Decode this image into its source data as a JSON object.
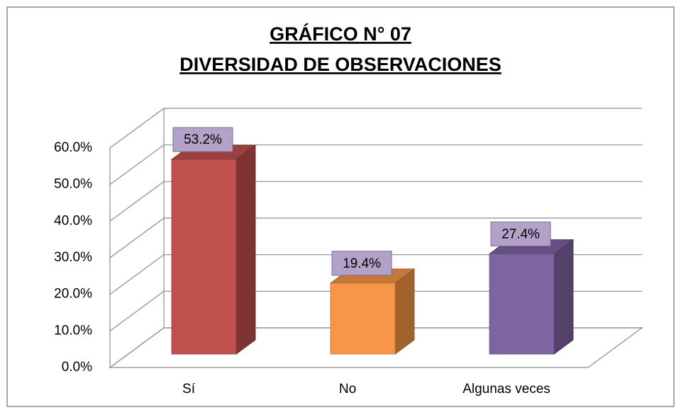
{
  "chart_data": {
    "type": "bar3d",
    "title": "GRÁFICO N° 07",
    "subtitle": "DIVERSIDAD DE OBSERVACIONES",
    "categories": [
      "Sí",
      "No",
      "Algunas veces"
    ],
    "values": [
      53.2,
      19.4,
      27.4
    ],
    "value_labels": [
      "53.2%",
      "19.4%",
      "27.4%"
    ],
    "colors": [
      "#c0504d",
      "#f79646",
      "#8064a2"
    ],
    "ylim": [
      0,
      60
    ],
    "yticks": [
      {
        "value": 0,
        "label": "0.0%"
      },
      {
        "value": 10,
        "label": "10.0%"
      },
      {
        "value": 20,
        "label": "20.0%"
      },
      {
        "value": 30,
        "label": "30.0%"
      },
      {
        "value": 40,
        "label": "40.0%"
      },
      {
        "value": 50,
        "label": "50.0%"
      },
      {
        "value": 60,
        "label": "60.0%"
      }
    ],
    "grid": true
  }
}
